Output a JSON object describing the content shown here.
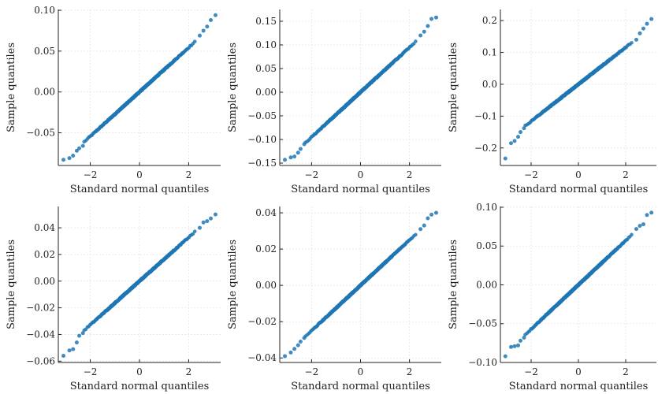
{
  "colors": {
    "point": "#1f77b4",
    "axis": "#222222",
    "grid": "#dddddd"
  },
  "chart_data": [
    {
      "type": "scatter",
      "xlabel": "Standard normal quantiles",
      "ylabel": "Sample quantiles",
      "xlim": [
        -3.3,
        3.3
      ],
      "ylim": [
        -0.09,
        0.101
      ],
      "xticks": [
        -2,
        0,
        2
      ],
      "yticks": [
        -0.05,
        0.0,
        0.05,
        0.1
      ],
      "ytick_labels": [
        "−0.05",
        "0.00",
        "0.05",
        "0.10"
      ],
      "grid": true,
      "trend": {
        "slope": 0.0272,
        "intercept": 0.0
      },
      "points": [
        [
          -3.09,
          -0.083
        ],
        [
          -2.85,
          -0.081
        ],
        [
          -2.7,
          -0.078
        ],
        [
          -2.55,
          -0.072
        ],
        [
          -2.45,
          -0.069
        ],
        [
          -2.3,
          -0.066
        ],
        [
          2.45,
          0.069
        ],
        [
          2.6,
          0.075
        ],
        [
          2.75,
          0.08
        ],
        [
          2.9,
          0.088
        ],
        [
          3.09,
          0.094
        ]
      ]
    },
    {
      "type": "scatter",
      "xlabel": "Standard normal quantiles",
      "ylabel": "Sample quantiles",
      "xlim": [
        -3.3,
        3.3
      ],
      "ylim": [
        -0.155,
        0.175
      ],
      "xticks": [
        -2,
        0,
        2
      ],
      "yticks": [
        -0.15,
        -0.1,
        -0.05,
        0.0,
        0.05,
        0.1,
        0.15
      ],
      "ytick_labels": [
        "−0.15",
        "−0.10",
        "−0.05",
        "0.00",
        "0.05",
        "0.10",
        "0.15"
      ],
      "grid": true,
      "trend": {
        "slope": 0.0475,
        "intercept": 0.0
      },
      "points": [
        [
          -3.09,
          -0.143
        ],
        [
          -2.85,
          -0.138
        ],
        [
          -2.7,
          -0.136
        ],
        [
          -2.55,
          -0.128
        ],
        [
          -2.45,
          -0.12
        ],
        [
          -2.3,
          -0.11
        ],
        [
          2.45,
          0.12
        ],
        [
          2.6,
          0.128
        ],
        [
          2.75,
          0.14
        ],
        [
          2.9,
          0.155
        ],
        [
          3.09,
          0.158
        ]
      ]
    },
    {
      "type": "scatter",
      "xlabel": "Standard normal quantiles",
      "ylabel": "Sample quantiles",
      "xlim": [
        -3.3,
        3.3
      ],
      "ylim": [
        -0.255,
        0.235
      ],
      "xticks": [
        -2,
        0,
        2
      ],
      "yticks": [
        -0.2,
        -0.1,
        0.0,
        0.1,
        0.2
      ],
      "ytick_labels": [
        "−0.2",
        "−0.1",
        "0.0",
        "0.1",
        "0.2"
      ],
      "grid": true,
      "trend": {
        "slope": 0.058,
        "intercept": 0.0
      },
      "points": [
        [
          -3.09,
          -0.233
        ],
        [
          -2.85,
          -0.185
        ],
        [
          -2.7,
          -0.178
        ],
        [
          -2.55,
          -0.165
        ],
        [
          -2.45,
          -0.15
        ],
        [
          -2.3,
          -0.138
        ],
        [
          2.45,
          0.14
        ],
        [
          2.6,
          0.16
        ],
        [
          2.75,
          0.175
        ],
        [
          2.9,
          0.19
        ],
        [
          3.09,
          0.205
        ]
      ]
    },
    {
      "type": "scatter",
      "xlabel": "Standard normal quantiles",
      "ylabel": "Sample quantiles",
      "xlim": [
        -3.3,
        3.3
      ],
      "ylim": [
        -0.061,
        0.056
      ],
      "xticks": [
        -2,
        0,
        2
      ],
      "yticks": [
        -0.06,
        -0.04,
        -0.02,
        0.0,
        0.02,
        0.04
      ],
      "ytick_labels": [
        "−0.06",
        "−0.04",
        "−0.02",
        "0.00",
        "0.02",
        "0.04"
      ],
      "grid": true,
      "trend": {
        "slope": 0.0164,
        "intercept": 0.0
      },
      "points": [
        [
          -3.09,
          -0.056
        ],
        [
          -2.85,
          -0.052
        ],
        [
          -2.7,
          -0.051
        ],
        [
          -2.55,
          -0.046
        ],
        [
          -2.45,
          -0.041
        ],
        [
          -2.3,
          -0.039
        ],
        [
          2.45,
          0.04
        ],
        [
          2.6,
          0.044
        ],
        [
          2.75,
          0.045
        ],
        [
          2.9,
          0.047
        ],
        [
          3.09,
          0.05
        ]
      ]
    },
    {
      "type": "scatter",
      "xlabel": "Standard normal quantiles",
      "ylabel": "Sample quantiles",
      "xlim": [
        -3.3,
        3.3
      ],
      "ylim": [
        -0.0425,
        0.0435
      ],
      "xticks": [
        -2,
        0,
        2
      ],
      "yticks": [
        -0.04,
        -0.02,
        0.0,
        0.02,
        0.04
      ],
      "ytick_labels": [
        "−0.04",
        "−0.02",
        "0.00",
        "0.02",
        "0.04"
      ],
      "grid": true,
      "trend": {
        "slope": 0.0125,
        "intercept": 0.0
      },
      "points": [
        [
          -3.09,
          -0.039
        ],
        [
          -2.85,
          -0.037
        ],
        [
          -2.7,
          -0.035
        ],
        [
          -2.55,
          -0.033
        ],
        [
          -2.45,
          -0.031
        ],
        [
          -2.3,
          -0.029
        ],
        [
          2.45,
          0.031
        ],
        [
          2.6,
          0.033
        ],
        [
          2.75,
          0.037
        ],
        [
          2.9,
          0.039
        ],
        [
          3.09,
          0.04
        ]
      ]
    },
    {
      "type": "scatter",
      "xlabel": "Standard normal quantiles",
      "ylabel": "Sample quantiles",
      "xlim": [
        -3.3,
        3.3
      ],
      "ylim": [
        -0.1,
        0.101
      ],
      "xticks": [
        -2,
        0,
        2
      ],
      "yticks": [
        -0.1,
        -0.05,
        0.0,
        0.05,
        0.1
      ],
      "ytick_labels": [
        "−0.10",
        "−0.05",
        "0.00",
        "0.05",
        "0.10"
      ],
      "grid": true,
      "trend": {
        "slope": 0.0285,
        "intercept": 0.0
      },
      "points": [
        [
          -3.09,
          -0.092
        ],
        [
          -2.85,
          -0.08
        ],
        [
          -2.7,
          -0.079
        ],
        [
          -2.55,
          -0.078
        ],
        [
          -2.45,
          -0.072
        ],
        [
          -2.3,
          -0.068
        ],
        [
          2.45,
          0.072
        ],
        [
          2.6,
          0.076
        ],
        [
          2.75,
          0.078
        ],
        [
          2.9,
          0.09
        ],
        [
          3.09,
          0.093
        ]
      ]
    }
  ]
}
